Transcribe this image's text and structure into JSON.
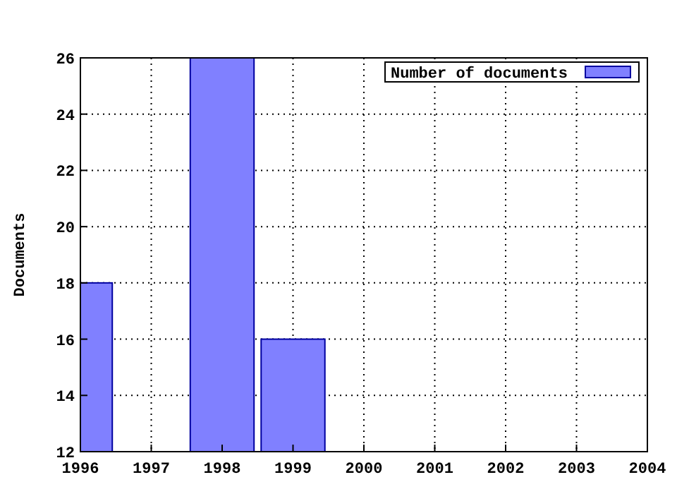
{
  "chart_data": {
    "type": "bar",
    "ylabel": "Documents",
    "x": [
      1996,
      1998,
      1999
    ],
    "series": [
      {
        "name": "Number of documents",
        "color": "#8080ff",
        "values": [
          18,
          26,
          16
        ]
      }
    ],
    "xlim": [
      1996,
      2004
    ],
    "xticks": [
      1996,
      1997,
      1998,
      1999,
      2000,
      2001,
      2002,
      2003,
      2004
    ],
    "ylim": [
      12,
      26
    ],
    "yticks": [
      12,
      14,
      16,
      18,
      20,
      22,
      24,
      26
    ],
    "grid": true,
    "legend": "top right"
  }
}
